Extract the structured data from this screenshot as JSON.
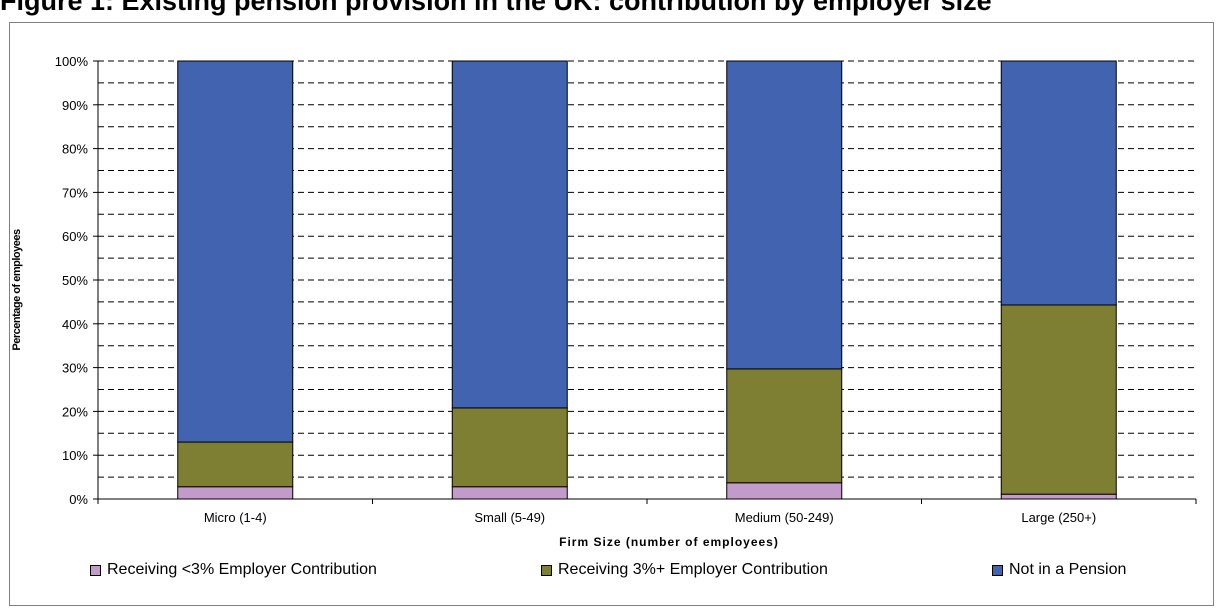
{
  "page": {
    "title": "Figure 1: Existing pension provision in the UK: contribution by employer size"
  },
  "chart_data": {
    "type": "bar",
    "stacked": true,
    "categories": [
      "Micro (1-4)",
      "Small (5-49)",
      "Medium (50-249)",
      "Large (250+)"
    ],
    "series": [
      {
        "name": "Receiving <3% Employer Contribution",
        "color": "#C29BCB",
        "values": [
          2.8,
          2.8,
          3.7,
          1.1
        ]
      },
      {
        "name": "Receiving 3%+ Employer Contribution",
        "color": "#7F7F33",
        "values": [
          10.2,
          18.0,
          26.0,
          43.2
        ]
      },
      {
        "name": "Not in a Pension",
        "color": "#4263B0",
        "values": [
          87.0,
          79.2,
          70.3,
          55.7
        ]
      }
    ],
    "xlabel": "Firm Size (number of employees)",
    "ylabel": "Percentage of employees",
    "ylim": [
      0,
      100
    ],
    "yticks": [
      "0%",
      "10%",
      "20%",
      "30%",
      "40%",
      "50%",
      "60%",
      "70%",
      "80%",
      "90%",
      "100%"
    ],
    "grid": true,
    "legend_position": "bottom"
  }
}
